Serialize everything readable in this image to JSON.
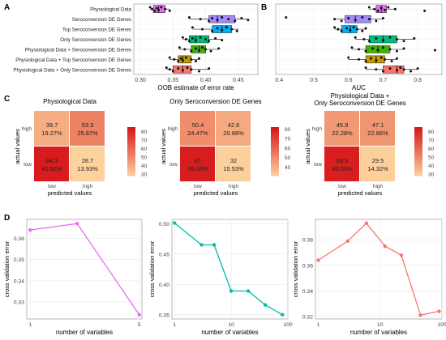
{
  "chart_data": [
    {
      "panel": "A",
      "type": "boxplot",
      "xlabel": "OOB estimate of error rate",
      "xlim": [
        0.29,
        0.48
      ],
      "xticks": [
        "0.30",
        "0.35",
        "0.40",
        "0.45"
      ],
      "xtick_values": [
        0.3,
        0.35,
        0.4,
        0.45
      ],
      "categories": [
        "Physiological Data",
        "Seroconversion DE Genes",
        "Top Seroconversion DE Genes",
        "Only Seroconversion DE Genes",
        "Physiological Data + Seroconversion DE Genes",
        "Physiological Data + Top Seroconversion DE Genes",
        "Physiological Data + Only Seroconversion DE Genes"
      ],
      "colors": [
        "#e76bf3",
        "#a58aff",
        "#00b0f6",
        "#00bf7d",
        "#39b600",
        "#c49a00",
        "#f8766d"
      ],
      "boxes": [
        {
          "min": 0.315,
          "q1": 0.32,
          "median": 0.328,
          "q3": 0.338,
          "max": 0.345,
          "points": [
            0.315,
            0.318,
            0.322,
            0.325,
            0.328,
            0.332,
            0.338,
            0.345
          ]
        },
        {
          "min": 0.375,
          "q1": 0.405,
          "median": 0.418,
          "q3": 0.445,
          "max": 0.465,
          "points": [
            0.375,
            0.392,
            0.405,
            0.41,
            0.418,
            0.425,
            0.435,
            0.445,
            0.455,
            0.465
          ]
        },
        {
          "min": 0.38,
          "q1": 0.41,
          "median": 0.425,
          "q3": 0.44,
          "max": 0.45,
          "points": [
            0.38,
            0.395,
            0.41,
            0.418,
            0.425,
            0.432,
            0.44,
            0.448
          ]
        },
        {
          "min": 0.365,
          "q1": 0.375,
          "median": 0.385,
          "q3": 0.405,
          "max": 0.425,
          "points": [
            0.365,
            0.37,
            0.375,
            0.38,
            0.385,
            0.392,
            0.4,
            0.405,
            0.415,
            0.425
          ]
        },
        {
          "min": 0.36,
          "q1": 0.378,
          "median": 0.39,
          "q3": 0.4,
          "max": 0.42,
          "points": [
            0.36,
            0.368,
            0.378,
            0.385,
            0.39,
            0.395,
            0.4,
            0.408,
            0.42
          ]
        },
        {
          "min": 0.345,
          "q1": 0.358,
          "median": 0.365,
          "q3": 0.378,
          "max": 0.39,
          "points": [
            0.345,
            0.352,
            0.358,
            0.362,
            0.365,
            0.37,
            0.378,
            0.385,
            0.39
          ]
        },
        {
          "min": 0.34,
          "q1": 0.35,
          "median": 0.365,
          "q3": 0.378,
          "max": 0.405,
          "points": [
            0.34,
            0.345,
            0.35,
            0.358,
            0.365,
            0.372,
            0.378,
            0.39,
            0.405
          ]
        }
      ]
    },
    {
      "panel": "B",
      "type": "boxplot",
      "xlabel": "AUC",
      "xlim": [
        0.39,
        0.87
      ],
      "xticks": [
        "0.4",
        "0.5",
        "0.6",
        "0.7",
        "0.8"
      ],
      "xtick_values": [
        0.4,
        0.5,
        0.6,
        0.7,
        0.8
      ],
      "categories": [
        "Physiological Data",
        "Seroconversion DE Genes",
        "Top Seroconversion DE Genes",
        "Only Seroconversion DE Genes",
        "Physiological Data + Seroconversion DE Genes",
        "Physiological Data + Top Seroconversion DE Genes",
        "Physiological Data + Only Seroconversion DE Genes"
      ],
      "colors": [
        "#e76bf3",
        "#a58aff",
        "#00b0f6",
        "#00bf7d",
        "#39b600",
        "#c49a00",
        "#f8766d"
      ],
      "boxes": [
        {
          "min": 0.66,
          "q1": 0.68,
          "median": 0.695,
          "q3": 0.71,
          "max": 0.735,
          "points": [
            0.66,
            0.675,
            0.685,
            0.695,
            0.705,
            0.715,
            0.735,
            0.82
          ]
        },
        {
          "min": 0.56,
          "q1": 0.59,
          "median": 0.62,
          "q3": 0.665,
          "max": 0.7,
          "points": [
            0.42,
            0.56,
            0.58,
            0.6,
            0.62,
            0.64,
            0.66,
            0.68,
            0.7
          ]
        },
        {
          "min": 0.56,
          "q1": 0.58,
          "median": 0.605,
          "q3": 0.625,
          "max": 0.65,
          "points": [
            0.56,
            0.57,
            0.58,
            0.595,
            0.605,
            0.615,
            0.625,
            0.64,
            0.65
          ]
        },
        {
          "min": 0.62,
          "q1": 0.66,
          "median": 0.7,
          "q3": 0.74,
          "max": 0.79,
          "points": [
            0.62,
            0.645,
            0.66,
            0.68,
            0.7,
            0.72,
            0.74,
            0.76,
            0.79
          ]
        },
        {
          "min": 0.61,
          "q1": 0.65,
          "median": 0.685,
          "q3": 0.72,
          "max": 0.76,
          "points": [
            0.61,
            0.63,
            0.65,
            0.67,
            0.685,
            0.7,
            0.72,
            0.74,
            0.76,
            0.85
          ]
        },
        {
          "min": 0.6,
          "q1": 0.65,
          "median": 0.68,
          "q3": 0.705,
          "max": 0.74,
          "points": [
            0.6,
            0.63,
            0.65,
            0.665,
            0.68,
            0.695,
            0.705,
            0.725,
            0.74
          ]
        },
        {
          "min": 0.65,
          "q1": 0.7,
          "median": 0.74,
          "q3": 0.76,
          "max": 0.8,
          "points": [
            0.65,
            0.68,
            0.7,
            0.72,
            0.74,
            0.75,
            0.76,
            0.78,
            0.8
          ]
        }
      ]
    },
    {
      "panel": "C",
      "type": "heatmap",
      "title": "Physiological Data",
      "xlabel": "predicted values",
      "ylabel": "actual values",
      "col_labels": [
        "low",
        "high"
      ],
      "row_labels": [
        "high",
        "low"
      ],
      "cells": [
        [
          {
            "value": "39.7",
            "pct": "19.27%",
            "v": 39.7
          },
          {
            "value": "53.3",
            "pct": "25.87%",
            "v": 53.3
          }
        ],
        [
          {
            "value": "84.3",
            "pct": "40.92%",
            "v": 84.3
          },
          {
            "value": "28.7",
            "pct": "13.93%",
            "v": 28.7
          }
        ]
      ],
      "legend_ticks": [
        "80",
        "70",
        "60",
        "50",
        "40",
        "30"
      ],
      "legend_range": [
        28,
        85
      ]
    },
    {
      "panel": "C",
      "type": "heatmap",
      "title": "Only Seroconversion DE Genes",
      "xlabel": "predicted values",
      "ylabel": "actual values",
      "col_labels": [
        "low",
        "high"
      ],
      "row_labels": [
        "high",
        "low"
      ],
      "cells": [
        [
          {
            "value": "50.4",
            "pct": "24.47%",
            "v": 50.4
          },
          {
            "value": "42.6",
            "pct": "20.68%",
            "v": 42.6
          }
        ],
        [
          {
            "value": "81",
            "pct": "39.33%",
            "v": 81
          },
          {
            "value": "32",
            "pct": "15.53%",
            "v": 32
          }
        ]
      ],
      "legend_ticks": [
        "80",
        "70",
        "60",
        "50",
        "40"
      ],
      "legend_range": [
        31,
        82
      ]
    },
    {
      "panel": "C",
      "type": "heatmap",
      "title": "Physiological Data +\nOnly Seroconversion DE Genes",
      "xlabel": "predicted values",
      "ylabel": "actual values",
      "col_labels": [
        "low",
        "high"
      ],
      "row_labels": [
        "high",
        "low"
      ],
      "cells": [
        [
          {
            "value": "45.9",
            "pct": "22.28%",
            "v": 45.9
          },
          {
            "value": "47.1",
            "pct": "22.86%",
            "v": 47.1
          }
        ],
        [
          {
            "value": "83.5",
            "pct": "40.53%",
            "v": 83.5
          },
          {
            "value": "29.5",
            "pct": "14.32%",
            "v": 29.5
          }
        ]
      ],
      "legend_ticks": [
        "80",
        "70",
        "60",
        "50",
        "40",
        "30"
      ],
      "legend_range": [
        28,
        85
      ]
    },
    {
      "panel": "D",
      "type": "line",
      "color": "#e76bf3",
      "xlabel": "number of variables",
      "ylabel": "cross validation error",
      "x": [
        1,
        2,
        5
      ],
      "y": [
        0.364,
        0.367,
        0.324
      ],
      "xlog": true,
      "xlim": [
        0.95,
        5.2
      ],
      "ylim": [
        0.322,
        0.369
      ],
      "xticks": [
        "1",
        "5"
      ],
      "xtick_values": [
        1,
        5
      ],
      "yticks": [
        "0.33",
        "0.34",
        "0.35",
        "0.36"
      ],
      "ytick_values": [
        0.33,
        0.34,
        0.35,
        0.36
      ]
    },
    {
      "panel": "D",
      "type": "line",
      "color": "#00bfa0",
      "xlabel": "number of variables",
      "ylabel": "cross validation error",
      "x": [
        1,
        3,
        5,
        10,
        20,
        40,
        80
      ],
      "y": [
        0.501,
        0.465,
        0.465,
        0.389,
        0.389,
        0.366,
        0.35
      ],
      "xlog": true,
      "xlim": [
        0.9,
        100
      ],
      "ylim": [
        0.343,
        0.507
      ],
      "xticks": [
        "1",
        "10",
        "100"
      ],
      "xtick_values": [
        1,
        10,
        100
      ],
      "yticks": [
        "0.35",
        "0.40",
        "0.45",
        "0.50"
      ],
      "ytick_values": [
        0.35,
        0.4,
        0.45,
        0.5
      ]
    },
    {
      "panel": "D",
      "type": "line",
      "color": "#f8766d",
      "xlabel": "number of variables",
      "ylabel": "cross validation error",
      "x": [
        1,
        3,
        6,
        12,
        22,
        45,
        90
      ],
      "y": [
        0.364,
        0.379,
        0.393,
        0.375,
        0.368,
        0.321,
        0.324
      ],
      "xlog": true,
      "xlim": [
        0.9,
        100
      ],
      "ylim": [
        0.318,
        0.396
      ],
      "xticks": [
        "1",
        "10",
        "100"
      ],
      "xtick_values": [
        1,
        10,
        100
      ],
      "yticks": [
        "0.32",
        "0.34",
        "0.36",
        "0.38"
      ],
      "ytick_values": [
        0.32,
        0.34,
        0.36,
        0.38
      ]
    }
  ],
  "panel_labels": {
    "a": "A",
    "b": "B",
    "c": "C",
    "d": "D"
  }
}
